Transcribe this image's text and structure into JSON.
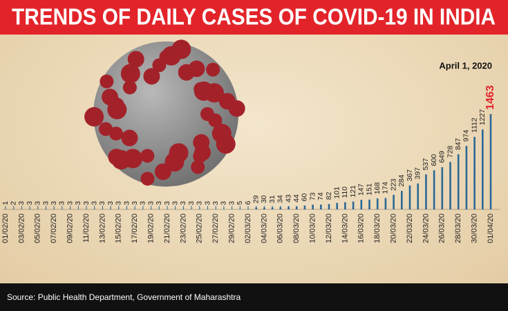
{
  "chart_data": {
    "type": "bar",
    "title": "TRENDS OF DAILY CASES OF COVID-19 IN INDIA",
    "date": "April 1, 2020",
    "source": "Source: Public Health Department, Government of Maharashtra",
    "color": "#2b6896",
    "highlight_color": "#e2242a",
    "categories": [
      "01/02/20",
      null,
      "03/02/20",
      null,
      "05/02/20",
      null,
      "07/02/20",
      null,
      "09/02/20",
      null,
      "11/02/20",
      null,
      "13/02/20",
      null,
      "15/02/20",
      null,
      "17/02/20",
      null,
      "19/02/20",
      null,
      "21/02/20",
      null,
      "23/02/20",
      null,
      "25/02/20",
      null,
      "27/02/20",
      null,
      "29/02/20",
      null,
      "02/03/20",
      null,
      "04/03/20",
      null,
      "06/03/20",
      null,
      "08/03/20",
      null,
      "10/03/20",
      null,
      "12/03/20",
      null,
      "14/03/20",
      null,
      "16/03/20",
      null,
      "18/03/20",
      null,
      "20/03/20",
      null,
      "22/03/20",
      null,
      "24/03/20",
      null,
      "26/03/20",
      null,
      "28/03/20",
      null,
      "30/03/20",
      null,
      "01/04/20"
    ],
    "values": [
      1,
      2,
      3,
      3,
      3,
      3,
      3,
      3,
      3,
      3,
      3,
      3,
      3,
      3,
      3,
      3,
      3,
      3,
      3,
      3,
      3,
      3,
      3,
      3,
      3,
      3,
      3,
      3,
      3,
      5,
      6,
      29,
      30,
      31,
      34,
      43,
      44,
      60,
      73,
      74,
      82,
      101,
      110,
      121,
      147,
      151,
      168,
      174,
      223,
      284,
      367,
      397,
      537,
      600,
      649,
      728,
      847,
      974,
      1112,
      1227,
      1463
    ]
  }
}
